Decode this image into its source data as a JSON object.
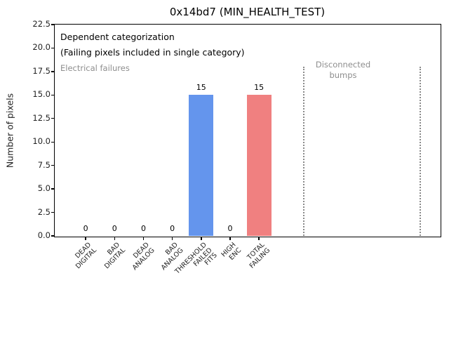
{
  "chart_data": {
    "type": "bar",
    "title": "0x14bd7 (MIN_HEALTH_TEST)",
    "xlabel": "",
    "ylabel": "Number of pixels",
    "ylim": [
      0,
      22.5
    ],
    "yticks": [
      "0.0",
      "2.5",
      "5.0",
      "7.5",
      "10.0",
      "12.5",
      "15.0",
      "17.5",
      "20.0",
      "22.5"
    ],
    "xlim": [
      -1.07,
      12.26
    ],
    "categories": [
      "DEAD DIGITAL",
      "BAD DIGITAL",
      "DEAD ANALOG",
      "BAD ANALOG",
      "THRESHOLD FAILED FITS",
      "HIGH ENC",
      "TOTAL FAILING"
    ],
    "values": [
      0,
      0,
      0,
      0,
      15,
      0,
      15
    ],
    "value_labels": [
      "0",
      "0",
      "0",
      "0",
      "15",
      "0",
      "15"
    ],
    "bar_colors": [
      "#6495ED",
      "#6495ED",
      "#6495ED",
      "#6495ED",
      "#6495ED",
      "#6495ED",
      "#F08080"
    ],
    "bar_width": 0.85,
    "grid": false,
    "legend": null,
    "separators": [
      {
        "x": 7.55,
        "y_top": 18
      },
      {
        "x": 11.58,
        "y_top": 18
      }
    ],
    "annotations": [
      {
        "id": "dependent",
        "text": "Dependent categorization",
        "color": "#000000"
      },
      {
        "id": "dependent-sub",
        "text": "(Failing pixels included in single category)",
        "color": "#000000"
      },
      {
        "id": "electrical",
        "text": "Electrical failures",
        "color": "#8e8e8e"
      },
      {
        "id": "disconnected",
        "text": "Disconnected\nbumps",
        "color": "#8e8e8e"
      }
    ]
  },
  "colors": {
    "bar_blue": "#6495ED",
    "bar_red": "#F08080",
    "gray_text": "#8e8e8e",
    "separator_gray": "#8a8a8a",
    "text": "#000000",
    "background": "#ffffff"
  }
}
